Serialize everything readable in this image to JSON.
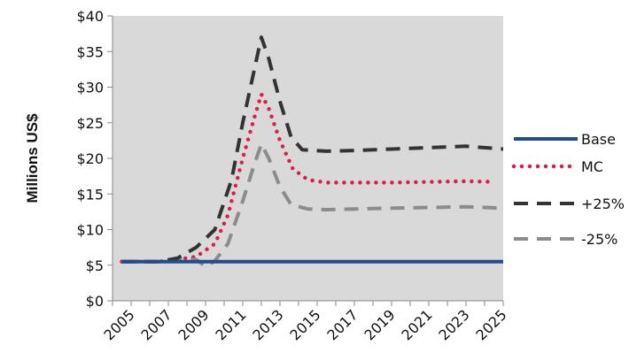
{
  "chart_data": {
    "type": "line",
    "title": "",
    "xlabel": "",
    "ylabel": "Millions US$",
    "ylim": [
      0,
      40
    ],
    "xlim": [
      2004,
      2025
    ],
    "y_ticks": [
      "$0",
      "$5",
      "$10",
      "$15",
      "$20",
      "$25",
      "$30",
      "$35",
      "$40"
    ],
    "x_ticks": [
      "2005",
      "2007",
      "2009",
      "2011",
      "2013",
      "2015",
      "2017",
      "2019",
      "2021",
      "2023",
      "2025"
    ],
    "legend_position": "right",
    "grid": false,
    "plot_background": "#d9d9d9",
    "series": [
      {
        "name": "Base",
        "style": "solid",
        "color": "#1f4e8c",
        "x": [
          2004.5,
          2025
        ],
        "y": [
          5.5,
          5.5
        ]
      },
      {
        "name": "MC",
        "style": "dotted",
        "color": "#d9204a",
        "x": [
          2004.5,
          2005.5,
          2006.5,
          2007.5,
          2008.5,
          2009.5,
          2010.2,
          2011.0,
          2011.6,
          2012.0,
          2012.4,
          2013.0,
          2013.7,
          2014.5,
          2015.5,
          2017,
          2019,
          2021,
          2023,
          2024.5
        ],
        "y": [
          5.5,
          5.5,
          5.5,
          5.8,
          6.2,
          8.0,
          12.0,
          20.0,
          25.5,
          29.0,
          27.0,
          22.5,
          18.5,
          17.0,
          16.6,
          16.6,
          16.6,
          16.7,
          16.8,
          16.7
        ]
      },
      {
        "name": "+25%",
        "style": "dashed",
        "color": "#333333",
        "x": [
          2004.5,
          2005.5,
          2006.5,
          2007.5,
          2008.5,
          2009.5,
          2010.4,
          2011.0,
          2011.5,
          2012.0,
          2012.4,
          2013.0,
          2013.6,
          2014.2,
          2015.5,
          2017,
          2019,
          2021,
          2023,
          2025
        ],
        "y": [
          5.5,
          5.5,
          5.5,
          6.0,
          7.5,
          10.0,
          17.0,
          25.0,
          31.0,
          37.0,
          34.0,
          28.0,
          23.0,
          21.2,
          21.0,
          21.1,
          21.3,
          21.5,
          21.7,
          21.3
        ]
      },
      {
        "name": "-25%",
        "style": "dashed",
        "color": "#8c8c8c",
        "x": [
          2004.5,
          2005.5,
          2006.5,
          2007.5,
          2008.5,
          2009.0,
          2009.5,
          2010.2,
          2011.0,
          2011.6,
          2012.0,
          2012.4,
          2013.0,
          2013.6,
          2014.5,
          2015.5,
          2017,
          2019,
          2021,
          2023,
          2025
        ],
        "y": [
          5.5,
          5.5,
          5.5,
          5.8,
          5.8,
          4.8,
          5.6,
          8.0,
          14.0,
          19.0,
          22.0,
          20.0,
          16.0,
          13.5,
          12.9,
          12.8,
          12.9,
          13.0,
          13.1,
          13.2,
          13.0
        ]
      }
    ]
  }
}
